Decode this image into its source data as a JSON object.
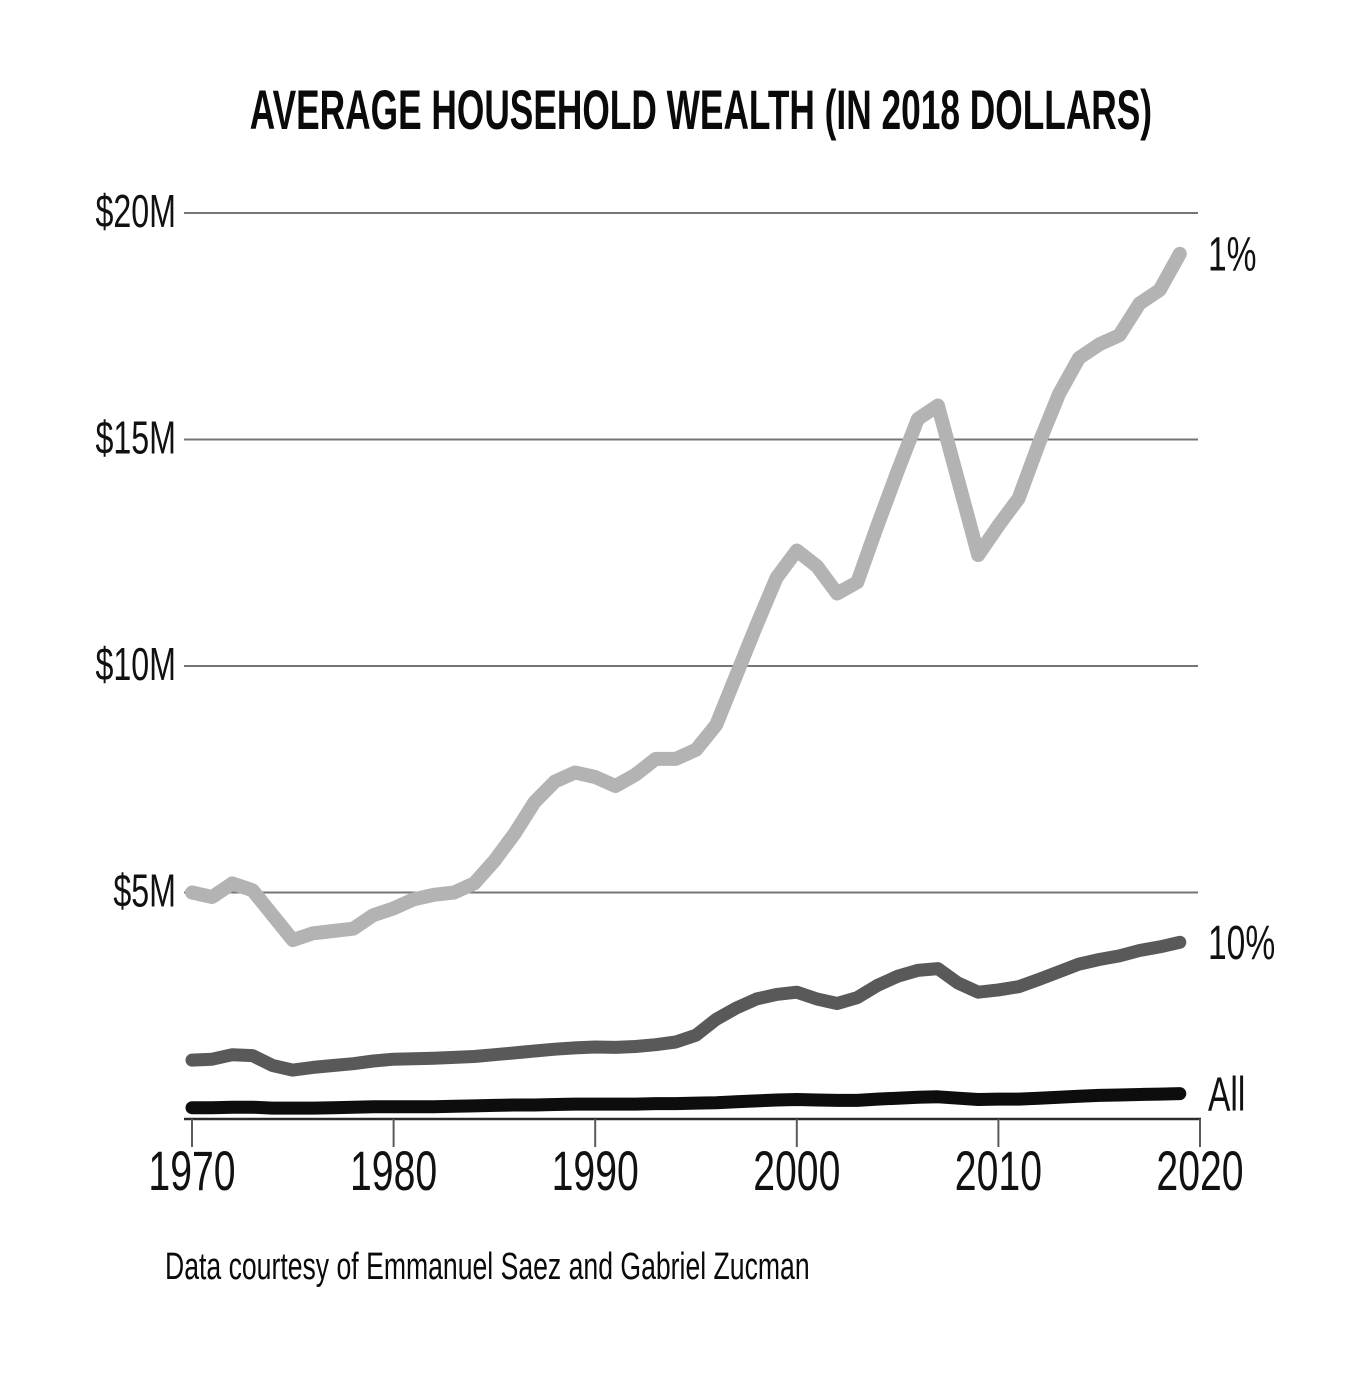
{
  "title": "AVERAGE HOUSEHOLD WEALTH (IN 2018 DOLLARS)",
  "footer_note": "Data courtesy of Emmanuel Saez and Gabriel Zucman",
  "chart_data": {
    "type": "line",
    "title": "AVERAGE HOUSEHOLD WEALTH (IN 2018 DOLLARS)",
    "annotation": "Data courtesy of Emmanuel Saez and Gabriel Zucman",
    "y_unit": "millions of 2018 dollars",
    "grid": "horizontal-only",
    "legend_position": "direct labels at right end of each line",
    "xlim": [
      1970,
      2020
    ],
    "ylim": [
      0,
      20
    ],
    "x_ticks": [
      1970,
      1980,
      1990,
      2000,
      2010,
      2020
    ],
    "y_ticks": [
      {
        "value": 5,
        "label": "$5M"
      },
      {
        "value": 10,
        "label": "$10M"
      },
      {
        "value": 15,
        "label": "$15M"
      },
      {
        "value": 20,
        "label": "$20M"
      }
    ],
    "x": [
      1970,
      1971,
      1972,
      1973,
      1974,
      1975,
      1976,
      1977,
      1978,
      1979,
      1980,
      1981,
      1982,
      1983,
      1984,
      1985,
      1986,
      1987,
      1988,
      1989,
      1990,
      1991,
      1992,
      1993,
      1994,
      1995,
      1996,
      1997,
      1998,
      1999,
      2000,
      2001,
      2002,
      2003,
      2004,
      2005,
      2006,
      2007,
      2008,
      2009,
      2010,
      2011,
      2012,
      2013,
      2014,
      2015,
      2016,
      2017,
      2018,
      2019
    ],
    "series": [
      {
        "name": "1%",
        "slug": "top-1-percent",
        "color": "#b3b3b3",
        "values": [
          5.0,
          4.9,
          5.2,
          5.05,
          4.5,
          3.95,
          4.1,
          4.15,
          4.2,
          4.5,
          4.65,
          4.85,
          4.95,
          5.0,
          5.2,
          5.7,
          6.3,
          7.0,
          7.45,
          7.65,
          7.55,
          7.35,
          7.6,
          7.95,
          7.95,
          8.15,
          8.7,
          9.8,
          10.9,
          11.95,
          12.55,
          12.2,
          11.6,
          11.85,
          13.1,
          14.3,
          15.45,
          15.75,
          14.1,
          12.45,
          13.1,
          13.7,
          14.9,
          16.0,
          16.8,
          17.1,
          17.3,
          18.0,
          18.3,
          19.1
        ]
      },
      {
        "name": "10%",
        "slug": "top-10-percent",
        "color": "#595959",
        "values": [
          1.3,
          1.32,
          1.42,
          1.4,
          1.18,
          1.08,
          1.14,
          1.18,
          1.22,
          1.28,
          1.32,
          1.33,
          1.34,
          1.36,
          1.38,
          1.42,
          1.46,
          1.5,
          1.54,
          1.57,
          1.59,
          1.58,
          1.6,
          1.64,
          1.7,
          1.85,
          2.2,
          2.45,
          2.65,
          2.75,
          2.8,
          2.65,
          2.55,
          2.68,
          2.95,
          3.15,
          3.28,
          3.32,
          3.0,
          2.8,
          2.85,
          2.92,
          3.08,
          3.25,
          3.42,
          3.52,
          3.6,
          3.72,
          3.8,
          3.9
        ]
      },
      {
        "name": "All",
        "slug": "all-households",
        "color": "#0d0d0d",
        "values": [
          0.25,
          0.25,
          0.26,
          0.26,
          0.24,
          0.24,
          0.24,
          0.25,
          0.26,
          0.27,
          0.27,
          0.27,
          0.27,
          0.28,
          0.29,
          0.3,
          0.31,
          0.31,
          0.32,
          0.33,
          0.33,
          0.33,
          0.33,
          0.34,
          0.34,
          0.35,
          0.36,
          0.38,
          0.4,
          0.42,
          0.43,
          0.42,
          0.41,
          0.41,
          0.44,
          0.46,
          0.48,
          0.49,
          0.46,
          0.43,
          0.44,
          0.44,
          0.46,
          0.48,
          0.5,
          0.52,
          0.53,
          0.54,
          0.55,
          0.56
        ]
      }
    ],
    "colors": {
      "grid": "#757575",
      "axis": "#2b2b2b",
      "tick": "#5a5a5a",
      "text": "#111111",
      "background": "#ffffff"
    }
  }
}
